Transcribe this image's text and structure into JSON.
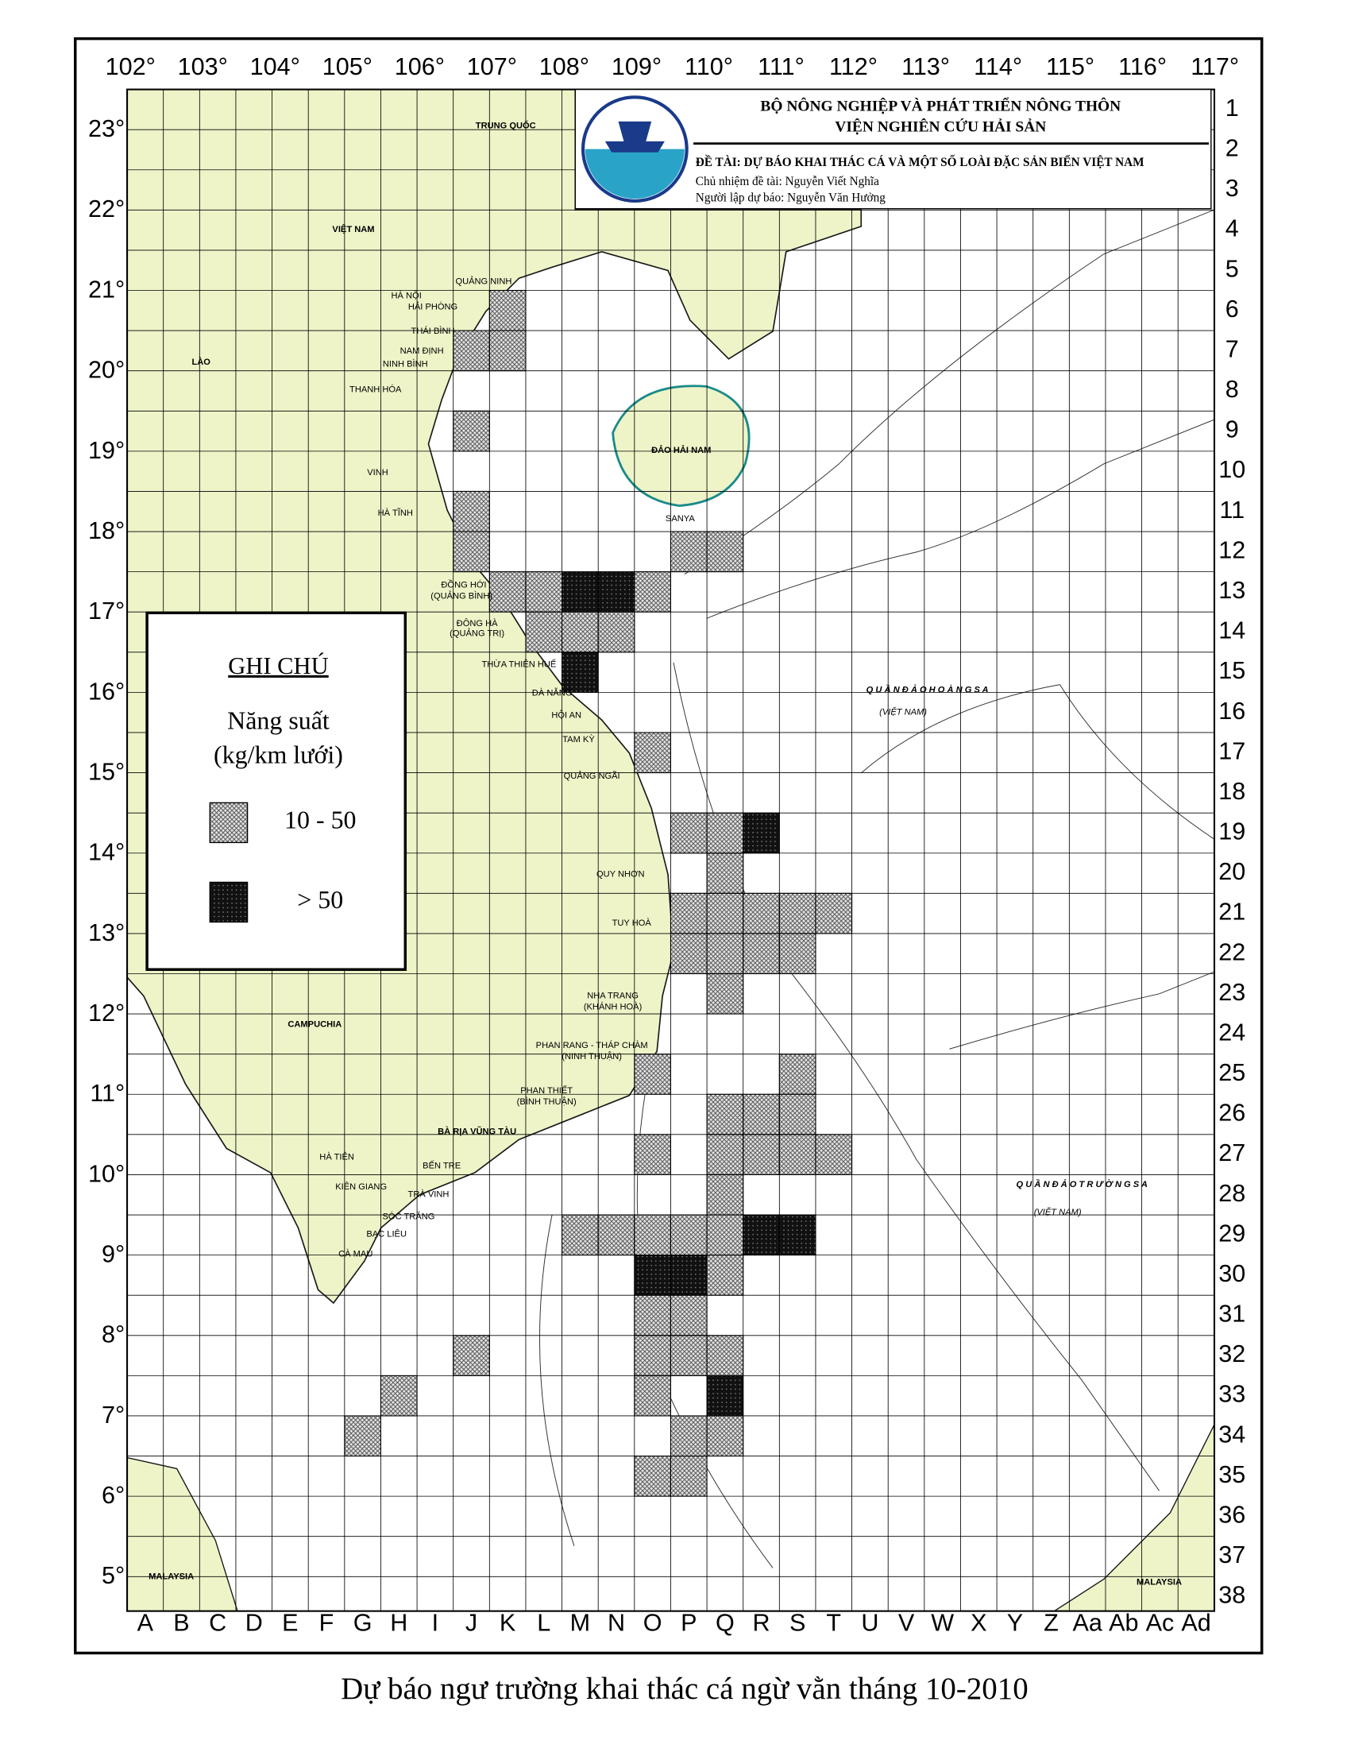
{
  "header": {
    "line1": "BỘ NÔNG NGHIỆP VÀ PHÁT TRIỂN NÔNG THÔN",
    "line2": "VIỆN NGHIÊN CỨU HẢI SẢN",
    "topic": "ĐỀ TÀI: DỰ BÁO KHAI THÁC CÁ VÀ MỘT SỐ LOÀI ĐẶC SẢN BIỂN VIỆT NAM",
    "lead": "Chủ nhiệm đề tài: Nguyễn Viết Nghĩa",
    "forecaster": "Người lập dự báo: Nguyễn Văn Hưởng"
  },
  "longitudes": [
    "102°",
    "103°",
    "104°",
    "105°",
    "106°",
    "107°",
    "108°",
    "109°",
    "110°",
    "111°",
    "112°",
    "113°",
    "114°",
    "115°",
    "116°",
    "117°"
  ],
  "latitudes": [
    "23°",
    "22°",
    "21°",
    "20°",
    "19°",
    "18°",
    "17°",
    "16°",
    "15°",
    "14°",
    "13°",
    "12°",
    "11°",
    "10°",
    "9°",
    "8°",
    "7°",
    "6°",
    "5°"
  ],
  "columns": [
    "A",
    "B",
    "C",
    "D",
    "E",
    "F",
    "G",
    "H",
    "I",
    "J",
    "K",
    "L",
    "M",
    "N",
    "O",
    "P",
    "Q",
    "R",
    "S",
    "T",
    "U",
    "V",
    "W",
    "X",
    "Y",
    "Z",
    "Aa",
    "Ab",
    "Ac",
    "Ad"
  ],
  "rows": [
    1,
    2,
    3,
    4,
    5,
    6,
    7,
    8,
    9,
    10,
    11,
    12,
    13,
    14,
    15,
    16,
    17,
    18,
    19,
    20,
    21,
    22,
    23,
    24,
    25,
    26,
    27,
    28,
    29,
    30,
    31,
    32,
    33,
    34,
    35,
    36,
    37,
    38
  ],
  "legend": {
    "title": "GHI CHÚ",
    "subtitle": "Năng suất",
    "unit": "(kg/km lưới)",
    "classes": [
      {
        "label": "10 - 50"
      },
      {
        "label": "> 50"
      }
    ]
  },
  "cells": [
    {
      "col": "K",
      "row": 6,
      "level": "10 - 50"
    },
    {
      "col": "J",
      "row": 7,
      "level": "10 - 50"
    },
    {
      "col": "K",
      "row": 7,
      "level": "10 - 50"
    },
    {
      "col": "J",
      "row": 9,
      "level": "10 - 50"
    },
    {
      "col": "J",
      "row": 11,
      "level": "10 - 50"
    },
    {
      "col": "J",
      "row": 12,
      "level": "10 - 50"
    },
    {
      "col": "P",
      "row": 12,
      "level": "10 - 50"
    },
    {
      "col": "Q",
      "row": 12,
      "level": "10 - 50"
    },
    {
      "col": "K",
      "row": 13,
      "level": "10 - 50"
    },
    {
      "col": "L",
      "row": 13,
      "level": "10 - 50"
    },
    {
      "col": "M",
      "row": 13,
      "level": "> 50"
    },
    {
      "col": "N",
      "row": 13,
      "level": "> 50"
    },
    {
      "col": "O",
      "row": 13,
      "level": "10 - 50"
    },
    {
      "col": "L",
      "row": 14,
      "level": "10 - 50"
    },
    {
      "col": "M",
      "row": 14,
      "level": "10 - 50"
    },
    {
      "col": "N",
      "row": 14,
      "level": "10 - 50"
    },
    {
      "col": "M",
      "row": 15,
      "level": "> 50"
    },
    {
      "col": "O",
      "row": 17,
      "level": "10 - 50"
    },
    {
      "col": "P",
      "row": 19,
      "level": "10 - 50"
    },
    {
      "col": "Q",
      "row": 19,
      "level": "10 - 50"
    },
    {
      "col": "R",
      "row": 19,
      "level": "> 50"
    },
    {
      "col": "Q",
      "row": 20,
      "level": "10 - 50"
    },
    {
      "col": "P",
      "row": 21,
      "level": "10 - 50"
    },
    {
      "col": "Q",
      "row": 21,
      "level": "10 - 50"
    },
    {
      "col": "R",
      "row": 21,
      "level": "10 - 50"
    },
    {
      "col": "S",
      "row": 21,
      "level": "10 - 50"
    },
    {
      "col": "T",
      "row": 21,
      "level": "10 - 50"
    },
    {
      "col": "P",
      "row": 22,
      "level": "10 - 50"
    },
    {
      "col": "Q",
      "row": 22,
      "level": "10 - 50"
    },
    {
      "col": "R",
      "row": 22,
      "level": "10 - 50"
    },
    {
      "col": "S",
      "row": 22,
      "level": "10 - 50"
    },
    {
      "col": "Q",
      "row": 23,
      "level": "10 - 50"
    },
    {
      "col": "O",
      "row": 25,
      "level": "10 - 50"
    },
    {
      "col": "S",
      "row": 25,
      "level": "10 - 50"
    },
    {
      "col": "Q",
      "row": 26,
      "level": "10 - 50"
    },
    {
      "col": "R",
      "row": 26,
      "level": "10 - 50"
    },
    {
      "col": "S",
      "row": 26,
      "level": "10 - 50"
    },
    {
      "col": "O",
      "row": 27,
      "level": "10 - 50"
    },
    {
      "col": "Q",
      "row": 27,
      "level": "10 - 50"
    },
    {
      "col": "R",
      "row": 27,
      "level": "10 - 50"
    },
    {
      "col": "S",
      "row": 27,
      "level": "10 - 50"
    },
    {
      "col": "T",
      "row": 27,
      "level": "10 - 50"
    },
    {
      "col": "Q",
      "row": 28,
      "level": "10 - 50"
    },
    {
      "col": "M",
      "row": 29,
      "level": "10 - 50"
    },
    {
      "col": "N",
      "row": 29,
      "level": "10 - 50"
    },
    {
      "col": "O",
      "row": 29,
      "level": "10 - 50"
    },
    {
      "col": "P",
      "row": 29,
      "level": "10 - 50"
    },
    {
      "col": "Q",
      "row": 29,
      "level": "10 - 50"
    },
    {
      "col": "R",
      "row": 29,
      "level": "> 50"
    },
    {
      "col": "S",
      "row": 29,
      "level": "> 50"
    },
    {
      "col": "O",
      "row": 30,
      "level": "> 50"
    },
    {
      "col": "P",
      "row": 30,
      "level": "> 50"
    },
    {
      "col": "Q",
      "row": 30,
      "level": "10 - 50"
    },
    {
      "col": "O",
      "row": 31,
      "level": "10 - 50"
    },
    {
      "col": "P",
      "row": 31,
      "level": "10 - 50"
    },
    {
      "col": "J",
      "row": 32,
      "level": "10 - 50"
    },
    {
      "col": "O",
      "row": 32,
      "level": "10 - 50"
    },
    {
      "col": "P",
      "row": 32,
      "level": "10 - 50"
    },
    {
      "col": "Q",
      "row": 32,
      "level": "10 - 50"
    },
    {
      "col": "H",
      "row": 33,
      "level": "10 - 50"
    },
    {
      "col": "O",
      "row": 33,
      "level": "10 - 50"
    },
    {
      "col": "Q",
      "row": 33,
      "level": "> 50"
    },
    {
      "col": "G",
      "row": 34,
      "level": "10 - 50"
    },
    {
      "col": "P",
      "row": 34,
      "level": "10 - 50"
    },
    {
      "col": "Q",
      "row": 34,
      "level": "10 - 50"
    },
    {
      "col": "O",
      "row": 35,
      "level": "10 - 50"
    },
    {
      "col": "P",
      "row": 35,
      "level": "10 - 50"
    }
  ],
  "places": [
    "TRUNG QUỐC",
    "VIỆT NAM",
    "LÀO",
    "CAMPUCHIA",
    "ĐẢO HẢI NAM",
    "SANYA",
    "QUẢNG NINH",
    "HẢI PHÒNG",
    "HÀ NỘI",
    "THÁI BÌNH",
    "NAM ĐỊNH",
    "NINH BÌNH",
    "THANH HÓA",
    "VINH",
    "HÀ TĨNH",
    "ĐỒNG HỚI",
    "(QUẢNG BÌNH)",
    "ĐÔNG HÀ",
    "(QUẢNG TRỊ)",
    "THỪA THIÊN HUẾ",
    "ĐÀ NẴNG",
    "HỘI AN",
    "TAM KỲ",
    "QUẢNG NGÃI",
    "QUY NHƠN",
    "TUY HOÀ",
    "NHA TRANG",
    "(KHÁNH HOÀ)",
    "PHAN RANG - THÁP CHÀM",
    "(NINH THUẬN)",
    "PHAN THIẾT",
    "(BÌNH THUẬN)",
    "BÀ RỊA VŨNG TÀU",
    "BẾN TRE",
    "TRÀ VINH",
    "KIÊN GIANG",
    "HÀ TIÊN",
    "SÓC TRĂNG",
    "BẠC LIÊU",
    "CÀ MAU",
    "Q U Ầ N   Đ Ả O   H O À N G   S A",
    "(VIỆT NAM)",
    "Q U Ầ N   Đ Ả O   T R Ư Ờ N G   S A",
    "(VIỆT NAM)",
    "MALAYSIA",
    "MALAYSIA"
  ],
  "caption": "Dự báo ngư trường khai thác cá ngừ vằn tháng 10-2010"
}
